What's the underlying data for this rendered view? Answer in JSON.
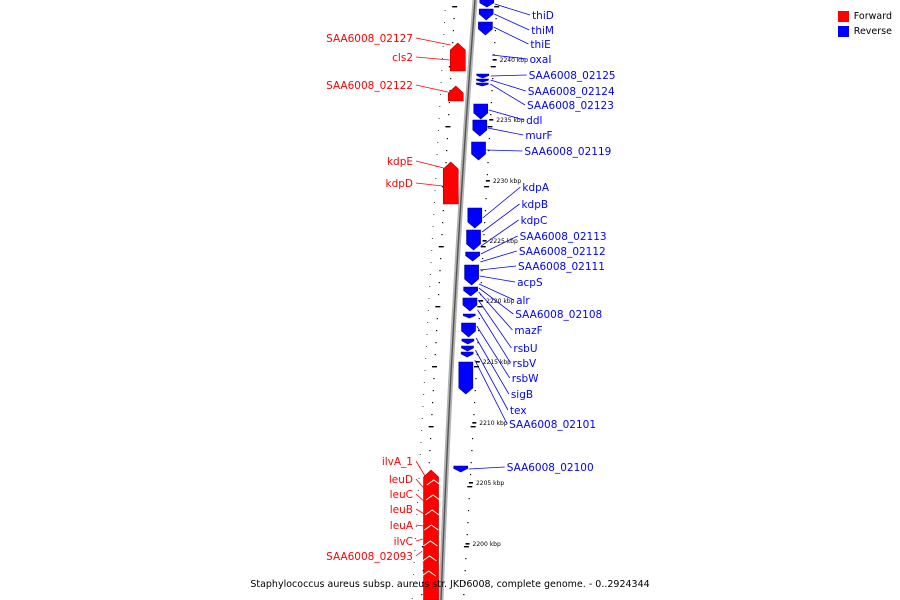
{
  "legend": {
    "forward_label": "Forward",
    "reverse_label": "Reverse",
    "forward_color": "#ff0000",
    "reverse_color": "#0000ff"
  },
  "caption": "Staphylococcus aureus subsp. aureus str. JKD6008, complete genome. - 0..2924344",
  "ticks": [
    "2240 kbp",
    "2235 kbp",
    "2230 kbp",
    "2225 kbp",
    "2220 kbp",
    "2215 kbp",
    "2210 kbp",
    "2205 kbp",
    "2200 kbp"
  ],
  "forward_genes": [
    "SAA6008_02127",
    "cls2",
    "SAA6008_02122",
    "kdpE",
    "kdpD",
    "ilvA_1",
    "leuD",
    "leuC",
    "leuB",
    "leuA",
    "ilvC",
    "SAA6008_02093"
  ],
  "reverse_genes": [
    "thiD",
    "thiM",
    "thiE",
    "oxaI",
    "SAA6008_02125",
    "SAA6008_02124",
    "SAA6008_02123",
    "ddl",
    "murF",
    "SAA6008_02119",
    "kdpA",
    "kdpB",
    "kdpC",
    "SAA6008_02113",
    "SAA6008_02112",
    "SAA6008_02111",
    "acpS",
    "alr",
    "SAA6008_02108",
    "mazF",
    "rsbU",
    "rsbV",
    "rsbW",
    "sigB",
    "tex",
    "SAA6008_02101",
    "SAA6008_02100"
  ]
}
